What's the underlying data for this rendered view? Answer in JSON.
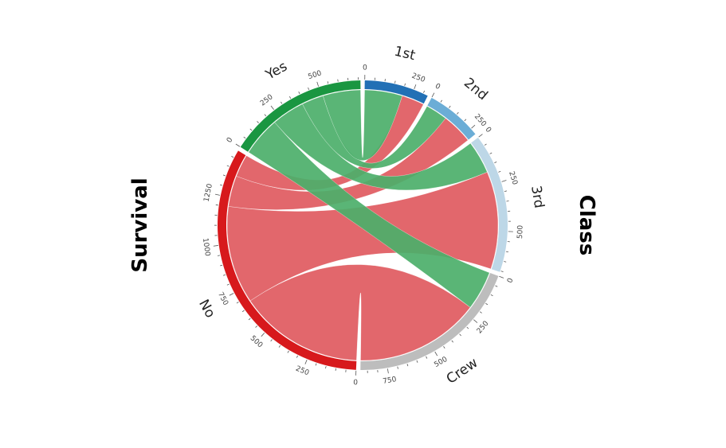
{
  "chart_data": {
    "type": "chord",
    "title": "",
    "groups": [
      {
        "name": "Survival",
        "sectors": [
          "No",
          "Yes"
        ]
      },
      {
        "name": "Class",
        "sectors": [
          "1st",
          "2nd",
          "3rd",
          "Crew"
        ]
      }
    ],
    "sectors": [
      {
        "name": "1st",
        "color": "#2270b5"
      },
      {
        "name": "2nd",
        "color": "#6badd6"
      },
      {
        "name": "3rd",
        "color": "#bdd7e7"
      },
      {
        "name": "Crew",
        "color": "#bdbdbd"
      },
      {
        "name": "No",
        "color": "#d7191c"
      },
      {
        "name": "Yes",
        "color": "#1a9641"
      }
    ],
    "flows": [
      {
        "from": "Yes",
        "to": "1st",
        "value": 203
      },
      {
        "from": "Yes",
        "to": "2nd",
        "value": 118
      },
      {
        "from": "Yes",
        "to": "3rd",
        "value": 178
      },
      {
        "from": "Yes",
        "to": "Crew",
        "value": 212
      },
      {
        "from": "No",
        "to": "1st",
        "value": 122
      },
      {
        "from": "No",
        "to": "2nd",
        "value": 167
      },
      {
        "from": "No",
        "to": "3rd",
        "value": 528
      },
      {
        "from": "No",
        "to": "Crew",
        "value": 673
      }
    ],
    "link_colors": {
      "No": "#e05a5f",
      "Yes": "#4caf6a"
    },
    "tick_step": 250,
    "grid": false,
    "legend": "none"
  }
}
